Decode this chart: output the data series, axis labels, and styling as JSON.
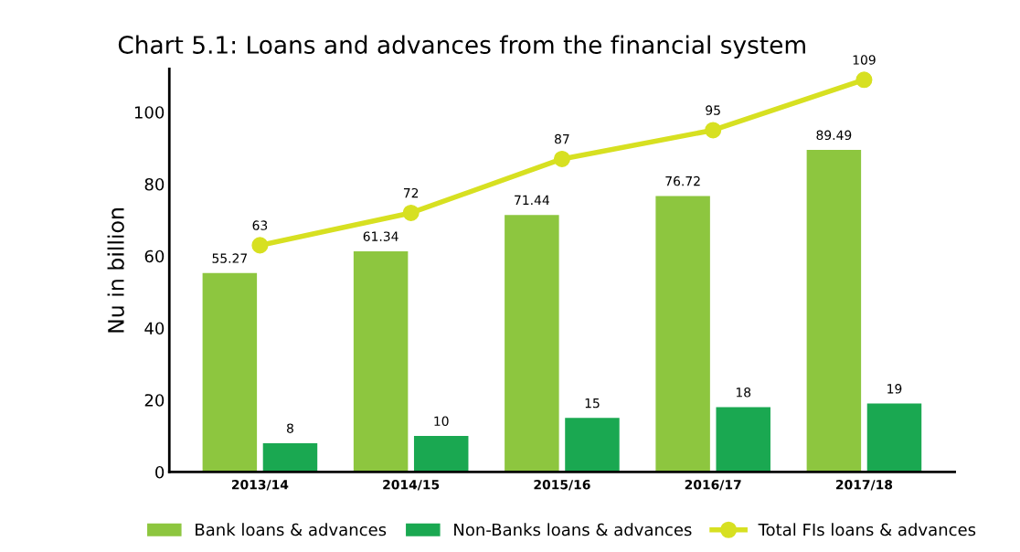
{
  "chart_data": {
    "type": "bar",
    "title": "Chart 5.1: Loans and advances from the financial system",
    "ylabel": "Nu in billion",
    "categories": [
      "2013/14",
      "2014/15",
      "2015/16",
      "2016/17",
      "2017/18"
    ],
    "series": [
      {
        "name": "Bank loans & advances",
        "color": "#8dc63f",
        "values": [
          55.27,
          61.34,
          71.44,
          76.72,
          89.49
        ]
      },
      {
        "name": "Non-Banks loans & advances",
        "color": "#1aa851",
        "values": [
          8,
          10,
          15,
          18,
          19
        ]
      },
      {
        "name": "Total FIs loans & advances",
        "type": "line",
        "color": "#d7e021",
        "marker": "circle",
        "values": [
          63,
          72,
          87,
          95,
          109
        ]
      }
    ],
    "ylim": [
      0,
      112
    ],
    "yticks": [
      0,
      20,
      40,
      60,
      80,
      100
    ],
    "data_labels": true,
    "grid": false,
    "legend": "bottom"
  }
}
